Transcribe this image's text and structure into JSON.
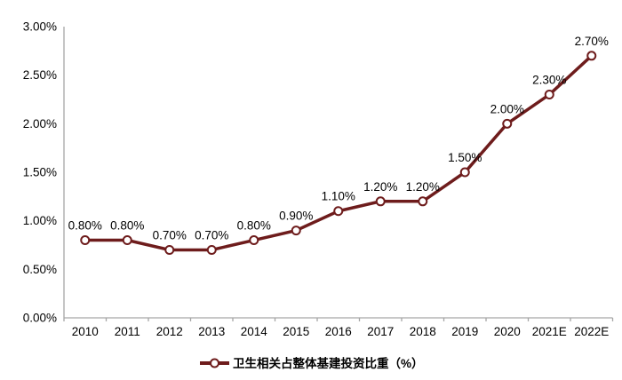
{
  "chart_data": {
    "type": "line",
    "title": "",
    "xlabel": "",
    "ylabel": "",
    "categories": [
      "2010",
      "2011",
      "2012",
      "2013",
      "2014",
      "2015",
      "2016",
      "2017",
      "2018",
      "2019",
      "2020",
      "2021E",
      "2022E"
    ],
    "series": [
      {
        "name": "卫生相关占整体基建投资比重（%）",
        "values": [
          0.8,
          0.8,
          0.7,
          0.7,
          0.8,
          0.9,
          1.1,
          1.2,
          1.2,
          1.5,
          2.0,
          2.3,
          2.7
        ],
        "point_labels": [
          "0.80%",
          "0.80%",
          "0.70%",
          "0.70%",
          "0.80%",
          "0.90%",
          "1.10%",
          "1.20%",
          "1.20%",
          "1.50%",
          "2.00%",
          "2.30%",
          "2.70%"
        ]
      }
    ],
    "ylim": [
      0,
      3.0
    ],
    "y_ticks": [
      {
        "value": 0.0,
        "label": "0.00%"
      },
      {
        "value": 0.5,
        "label": "0.50%"
      },
      {
        "value": 1.0,
        "label": "1.00%"
      },
      {
        "value": 1.5,
        "label": "1.50%"
      },
      {
        "value": 2.0,
        "label": "2.00%"
      },
      {
        "value": 2.5,
        "label": "2.50%"
      },
      {
        "value": 3.0,
        "label": "3.00%"
      }
    ],
    "grid": false,
    "legend_position": "bottom",
    "colors": {
      "line": "#6E1C1C",
      "marker_fill": "#FFFFFF",
      "axis": "#A6A6A6",
      "text": "#000000"
    }
  }
}
